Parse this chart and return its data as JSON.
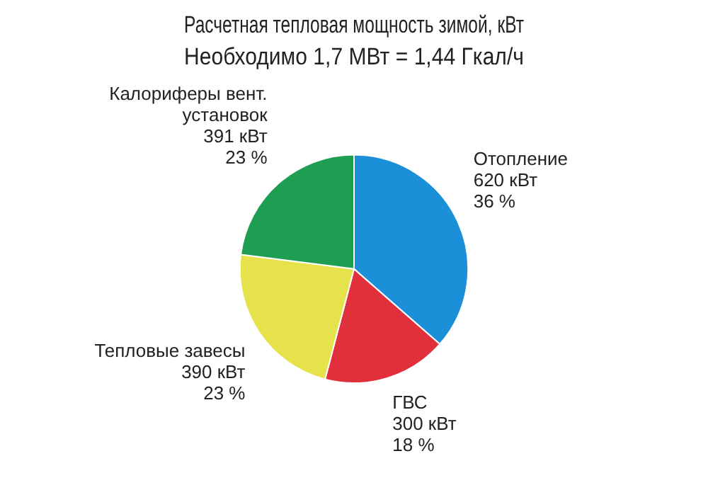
{
  "chart_data": {
    "type": "pie",
    "title": "Расчетная тепловая мощность зимой, кВт",
    "subtitle": "Необходимо 1,7 МВт = 1,44 Гкал/ч",
    "categories": [
      "Отопление",
      "ГВС",
      "Тепловые завесы",
      "Калориферы вент. установок"
    ],
    "values": [
      620,
      300,
      390,
      391
    ],
    "value_labels": [
      "620 кВт\n36 %",
      "300 кВт\n18 %",
      "390 кВт\n23 %",
      "391 кВт\n23 %"
    ],
    "colors": [
      "#1b8fd8",
      "#e0303c",
      "#e6e24c",
      "#1e9e52"
    ],
    "legend": false
  }
}
